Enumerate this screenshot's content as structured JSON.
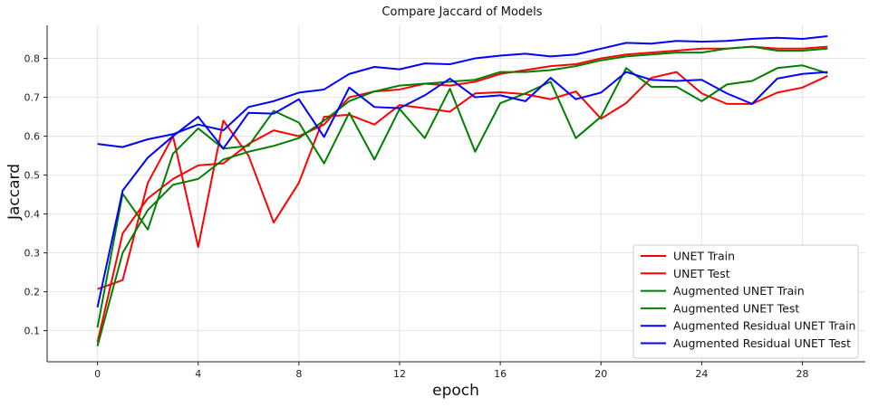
{
  "chart_data": {
    "type": "line",
    "title": "Compare Jaccard of Models",
    "xlabel": "epoch",
    "ylabel": "Jaccard",
    "xlim": [
      -2,
      30.5
    ],
    "ylim": [
      0.02,
      0.885
    ],
    "xticks": [
      0,
      4,
      8,
      12,
      16,
      20,
      24,
      28
    ],
    "yticks": [
      0.1,
      0.2,
      0.3,
      0.4,
      0.5,
      0.6,
      0.7,
      0.8
    ],
    "grid": true,
    "legend_position": "bottom-right",
    "x": [
      0,
      1,
      2,
      3,
      4,
      5,
      6,
      7,
      8,
      9,
      10,
      11,
      12,
      13,
      14,
      15,
      16,
      17,
      18,
      19,
      20,
      21,
      22,
      23,
      24,
      25,
      26,
      27,
      28,
      29
    ],
    "series": [
      {
        "name": "UNET Train",
        "color": "#ff0000",
        "values": [
          0.07,
          0.35,
          0.44,
          0.49,
          0.525,
          0.53,
          0.58,
          0.615,
          0.6,
          0.63,
          0.7,
          0.715,
          0.72,
          0.735,
          0.73,
          0.74,
          0.76,
          0.77,
          0.78,
          0.785,
          0.8,
          0.81,
          0.815,
          0.82,
          0.825,
          0.825,
          0.83,
          0.825,
          0.825,
          0.83
        ]
      },
      {
        "name": "UNET Test",
        "color": "#ff0000",
        "values": [
          0.207,
          0.23,
          0.48,
          0.6,
          0.315,
          0.64,
          0.55,
          0.378,
          0.48,
          0.65,
          0.655,
          0.63,
          0.68,
          0.672,
          0.663,
          0.71,
          0.713,
          0.708,
          0.695,
          0.715,
          0.645,
          0.685,
          0.75,
          0.765,
          0.71,
          0.683,
          0.683,
          0.712,
          0.725,
          0.755
        ]
      },
      {
        "name": "Augmented UNET Train",
        "color": "#008000",
        "values": [
          0.06,
          0.3,
          0.41,
          0.475,
          0.49,
          0.54,
          0.56,
          0.575,
          0.595,
          0.64,
          0.69,
          0.715,
          0.73,
          0.735,
          0.74,
          0.745,
          0.765,
          0.765,
          0.77,
          0.78,
          0.795,
          0.805,
          0.81,
          0.815,
          0.815,
          0.825,
          0.83,
          0.82,
          0.82,
          0.825
        ]
      },
      {
        "name": "Augmented UNET Test",
        "color": "#008000",
        "values": [
          0.108,
          0.452,
          0.36,
          0.555,
          0.62,
          0.568,
          0.575,
          0.665,
          0.635,
          0.53,
          0.66,
          0.54,
          0.67,
          0.595,
          0.722,
          0.56,
          0.685,
          0.71,
          0.74,
          0.595,
          0.65,
          0.775,
          0.727,
          0.727,
          0.69,
          0.733,
          0.742,
          0.775,
          0.782,
          0.762
        ]
      },
      {
        "name": "Augmented Residual UNET Train",
        "color": "#0000ff",
        "values": [
          0.58,
          0.572,
          0.592,
          0.605,
          0.63,
          0.615,
          0.675,
          0.69,
          0.712,
          0.72,
          0.76,
          0.778,
          0.772,
          0.787,
          0.785,
          0.8,
          0.807,
          0.812,
          0.805,
          0.81,
          0.825,
          0.84,
          0.838,
          0.845,
          0.843,
          0.845,
          0.85,
          0.853,
          0.85,
          0.857
        ]
      },
      {
        "name": "Augmented Residual UNET Test",
        "color": "#0000ff",
        "values": [
          0.16,
          0.46,
          0.545,
          0.6,
          0.65,
          0.568,
          0.66,
          0.658,
          0.695,
          0.598,
          0.725,
          0.675,
          0.672,
          0.705,
          0.748,
          0.7,
          0.705,
          0.69,
          0.75,
          0.695,
          0.712,
          0.765,
          0.745,
          0.742,
          0.745,
          0.71,
          0.683,
          0.748,
          0.76,
          0.765
        ]
      }
    ]
  }
}
